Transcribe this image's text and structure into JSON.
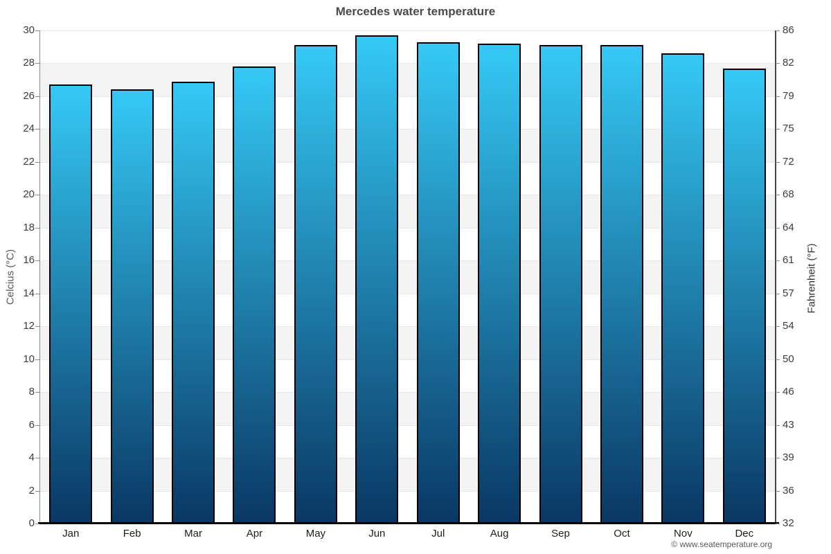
{
  "title": "Mercedes water temperature",
  "footer": {
    "copyright": "© www.seatemperature.org"
  },
  "chart_data": {
    "type": "bar",
    "title": "Mercedes water temperature",
    "categories": [
      "Jan",
      "Feb",
      "Mar",
      "Apr",
      "May",
      "Jun",
      "Jul",
      "Aug",
      "Sep",
      "Oct",
      "Nov",
      "Dec"
    ],
    "values": [
      26.7,
      26.4,
      26.9,
      27.8,
      29.1,
      29.7,
      29.3,
      29.2,
      29.1,
      29.1,
      28.6,
      27.7
    ],
    "xlabel": "",
    "ylabel_left": "Celcius (°C)",
    "ylabel_right": "Fahrenheit (°F)",
    "ylim": [
      0,
      30
    ],
    "ytick_step_celsius": 2,
    "yticks_left": [
      "0",
      "2",
      "4",
      "6",
      "8",
      "10",
      "12",
      "14",
      "16",
      "18",
      "20",
      "22",
      "24",
      "26",
      "28",
      "30"
    ],
    "yticks_right": [
      "32",
      "36",
      "39",
      "43",
      "46",
      "50",
      "54",
      "57",
      "61",
      "64",
      "68",
      "72",
      "75",
      "79",
      "82",
      "86"
    ],
    "grid": "alternating-horizontal-bands",
    "legend": "none",
    "colors": {
      "bar_gradient_top": "#35c9f6",
      "bar_gradient_bottom": "#0a3763",
      "bar_border": "#000000",
      "band": "#f3f3f3",
      "gridline": "#e7e7e7",
      "title_text": "#4a4a4a",
      "axis_text": "#3c3c3c",
      "axis_title_left": "#555555",
      "axis_title_right": "#333333"
    }
  }
}
